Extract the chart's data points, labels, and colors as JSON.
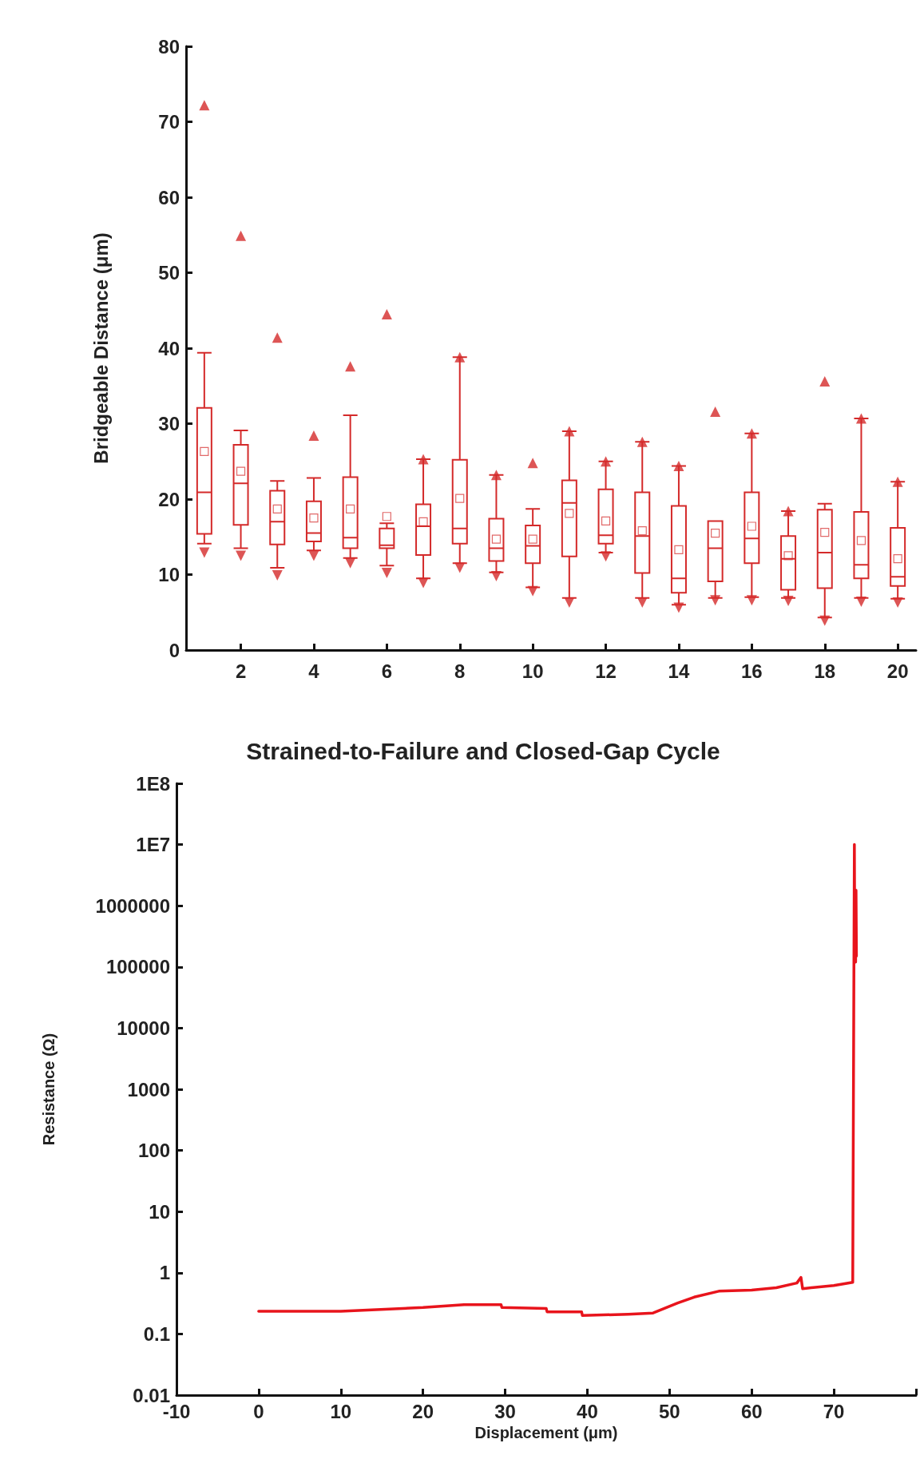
{
  "chart_data": [
    {
      "type": "box",
      "ylabel": "Bridgeable Distance (μm)",
      "categories": [
        null,
        "2",
        null,
        "4",
        null,
        "6",
        null,
        "8",
        null,
        "10",
        null,
        "12",
        null,
        "14",
        null,
        "16",
        null,
        "18",
        null,
        "20"
      ],
      "ylim": [
        0,
        80
      ],
      "yticks": [
        0,
        10,
        20,
        30,
        40,
        50,
        60,
        70,
        80
      ],
      "grid": false,
      "series": [
        {
          "color": "#d42a2a",
          "boxes": [
            {
              "low": 14.1,
              "q1": 15.4,
              "median": 20.9,
              "q3": 32.1,
              "high": 39.4,
              "mean": 26.3,
              "outliers": [
                72.2,
                12.9
              ]
            },
            {
              "low": 13.5,
              "q1": 16.6,
              "median": 22.1,
              "q3": 27.2,
              "high": 29.1,
              "mean": 23.7,
              "outliers": [
                54.9,
                12.5
              ]
            },
            {
              "low": 10.9,
              "q1": 14.0,
              "median": 17.0,
              "q3": 21.1,
              "high": 22.4,
              "mean": 18.7,
              "outliers": [
                41.4,
                9.9
              ]
            },
            {
              "low": 13.2,
              "q1": 14.4,
              "median": 15.5,
              "q3": 19.7,
              "high": 22.8,
              "mean": 17.5,
              "outliers": [
                28.4,
                12.5
              ]
            },
            {
              "low": 12.2,
              "q1": 13.5,
              "median": 14.9,
              "q3": 22.9,
              "high": 31.1,
              "mean": 18.7,
              "outliers": [
                37.6,
                11.5
              ]
            },
            {
              "low": 11.2,
              "q1": 13.5,
              "median": 13.9,
              "q3": 16.1,
              "high": 16.8,
              "mean": 17.7,
              "outliers": [
                44.5,
                10.2
              ]
            },
            {
              "low": 9.5,
              "q1": 12.6,
              "median": 16.4,
              "q3": 19.3,
              "high": 25.3,
              "mean": 17.0,
              "outliers": [
                25.3,
                8.9
              ]
            },
            {
              "low": 11.5,
              "q1": 14.1,
              "median": 16.1,
              "q3": 25.2,
              "high": 38.8,
              "mean": 20.1,
              "outliers": [
                38.8,
                10.9
              ]
            },
            {
              "low": 10.3,
              "q1": 11.8,
              "median": 13.5,
              "q3": 17.4,
              "high": 23.2,
              "mean": 14.7,
              "outliers": [
                23.2,
                9.8
              ]
            },
            {
              "low": 8.3,
              "q1": 11.5,
              "median": 13.8,
              "q3": 16.5,
              "high": 18.7,
              "mean": 14.7,
              "outliers": [
                24.8,
                7.8
              ]
            },
            {
              "low": 6.9,
              "q1": 12.4,
              "median": 19.5,
              "q3": 22.5,
              "high": 29.0,
              "mean": 18.1,
              "outliers": [
                29.0,
                6.3
              ]
            },
            {
              "low": 12.9,
              "q1": 14.1,
              "median": 15.2,
              "q3": 21.3,
              "high": 25.0,
              "mean": 17.1,
              "outliers": [
                25.0,
                12.4
              ]
            },
            {
              "low": 6.9,
              "q1": 10.2,
              "median": 15.1,
              "q3": 20.9,
              "high": 27.6,
              "mean": 15.8,
              "outliers": [
                27.6,
                6.3
              ]
            },
            {
              "low": 6.0,
              "q1": 7.6,
              "median": 9.5,
              "q3": 19.1,
              "high": 24.4,
              "mean": 13.3,
              "outliers": [
                24.4,
                5.6
              ]
            },
            {
              "low": 6.9,
              "q1": 9.1,
              "median": 13.5,
              "q3": 17.1,
              "high": 17.1,
              "mean": 15.5,
              "outliers": [
                31.6,
                6.6
              ]
            },
            {
              "low": 7.0,
              "q1": 11.5,
              "median": 14.8,
              "q3": 20.9,
              "high": 28.7,
              "mean": 16.4,
              "outliers": [
                28.7,
                6.6
              ]
            },
            {
              "low": 6.9,
              "q1": 8.0,
              "median": 12.1,
              "q3": 15.1,
              "high": 18.4,
              "mean": 12.5,
              "outliers": [
                18.4,
                6.5
              ]
            },
            {
              "low": 4.3,
              "q1": 8.2,
              "median": 12.9,
              "q3": 18.6,
              "high": 19.4,
              "mean": 15.6,
              "outliers": [
                35.6,
                3.9
              ]
            },
            {
              "low": 6.9,
              "q1": 9.5,
              "median": 11.3,
              "q3": 18.3,
              "high": 30.7,
              "mean": 14.5,
              "outliers": [
                30.7,
                6.4
              ]
            },
            {
              "low": 6.8,
              "q1": 8.5,
              "median": 9.7,
              "q3": 16.2,
              "high": 22.3,
              "mean": 12.1,
              "outliers": [
                22.3,
                6.3
              ]
            }
          ]
        }
      ]
    },
    {
      "type": "line",
      "title": "Strained-to-Failure and Closed-Gap Cycle",
      "xlabel": "Displacement (μm)",
      "ylabel": "Resistance (Ω)",
      "log": "y",
      "grid": false,
      "marker": "none",
      "line_style": "solid",
      "xlim": [
        -10,
        80
      ],
      "xticks": [
        -10,
        0,
        10,
        20,
        30,
        40,
        50,
        60,
        70,
        {
          "value": 80,
          "label": null
        }
      ],
      "ylim": [
        0.01,
        100000000
      ],
      "yticks": [
        0.01,
        0.1,
        1,
        10,
        100,
        1000,
        10000,
        100000,
        1000000,
        {
          "value": 10000000,
          "label": "1E7"
        },
        {
          "value": 100000000,
          "label": "1E8"
        }
      ],
      "series": [
        {
          "color": "#e8141c",
          "x": [
            0,
            10,
            20,
            25,
            29.5,
            29.6,
            35,
            35.1,
            39.3,
            39.4,
            45,
            48,
            51,
            53,
            56,
            60,
            63,
            65.5,
            66,
            66.2,
            70,
            72.3,
            72.5,
            72.55,
            72.6,
            72.65,
            72.7,
            72.75
          ],
          "values": [
            0.235,
            0.235,
            0.27,
            0.3,
            0.3,
            0.27,
            0.26,
            0.23,
            0.23,
            0.2,
            0.21,
            0.22,
            0.32,
            0.4,
            0.5,
            0.52,
            0.57,
            0.68,
            0.84,
            0.55,
            0.62,
            0.7,
            10000000,
            120000,
            1800000,
            120000,
            1800000,
            150000
          ]
        }
      ]
    }
  ]
}
